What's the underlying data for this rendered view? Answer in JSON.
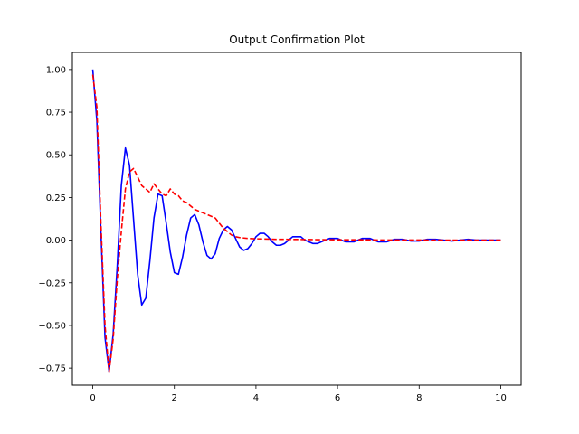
{
  "chart_data": {
    "type": "line",
    "title": "Output Confirmation Plot",
    "xlabel": "",
    "ylabel": "",
    "xlim": [
      -0.5,
      10.5
    ],
    "ylim": [
      -0.85,
      1.1
    ],
    "grid": false,
    "xticks": [
      0,
      2,
      4,
      6,
      8,
      10
    ],
    "xtick_labels": [
      "0",
      "2",
      "4",
      "6",
      "8",
      "10"
    ],
    "yticks": [
      -0.75,
      -0.5,
      -0.25,
      0.0,
      0.25,
      0.5,
      0.75,
      1.0
    ],
    "ytick_labels": [
      "−0.75",
      "−0.50",
      "−0.25",
      "0.00",
      "0.25",
      "0.50",
      "0.75",
      "1.00"
    ],
    "series": [
      {
        "color": "#0000ff",
        "style": "solid",
        "x": [
          0,
          0.1,
          0.2,
          0.3,
          0.4,
          0.5,
          0.6,
          0.7,
          0.8,
          0.9,
          1.0,
          1.1,
          1.2,
          1.3,
          1.4,
          1.5,
          1.6,
          1.7,
          1.8,
          1.9,
          2.0,
          2.1,
          2.2,
          2.3,
          2.4,
          2.5,
          2.6,
          2.7,
          2.8,
          2.9,
          3.0,
          3.1,
          3.2,
          3.3,
          3.4,
          3.5,
          3.6,
          3.7,
          3.8,
          3.9,
          4.0,
          4.1,
          4.2,
          4.3,
          4.4,
          4.5,
          4.6,
          4.7,
          4.8,
          4.9,
          5.0,
          5.1,
          5.2,
          5.3,
          5.4,
          5.5,
          5.6,
          5.7,
          5.8,
          5.9,
          6.0,
          6.2,
          6.4,
          6.6,
          6.8,
          7.0,
          7.2,
          7.4,
          7.6,
          7.8,
          8.0,
          8.2,
          8.4,
          8.6,
          8.8,
          9.0,
          9.2,
          9.4,
          9.6,
          9.8,
          10.0
        ],
        "y": [
          1.0,
          0.7,
          0.05,
          -0.57,
          -0.77,
          -0.55,
          -0.15,
          0.32,
          0.54,
          0.44,
          0.12,
          -0.2,
          -0.38,
          -0.34,
          -0.12,
          0.13,
          0.27,
          0.26,
          0.1,
          -0.07,
          -0.19,
          -0.2,
          -0.1,
          0.03,
          0.13,
          0.15,
          0.09,
          -0.01,
          -0.09,
          -0.11,
          -0.08,
          0.01,
          0.06,
          0.08,
          0.06,
          0.01,
          -0.04,
          -0.06,
          -0.05,
          -0.02,
          0.02,
          0.04,
          0.04,
          0.02,
          -0.01,
          -0.03,
          -0.03,
          -0.02,
          0.0,
          0.02,
          0.02,
          0.02,
          0.0,
          -0.01,
          -0.02,
          -0.02,
          -0.01,
          0.0,
          0.01,
          0.01,
          0.01,
          -0.01,
          -0.01,
          0.01,
          0.01,
          -0.01,
          -0.01,
          0.005,
          0.005,
          -0.005,
          -0.005,
          0.005,
          0.005,
          0.0,
          -0.005,
          0.0,
          0.005,
          0.0,
          0.0,
          0.0,
          0.0
        ]
      },
      {
        "color": "#ff0000",
        "style": "dashed",
        "x": [
          0,
          0.1,
          0.2,
          0.3,
          0.4,
          0.5,
          0.6,
          0.7,
          0.8,
          0.9,
          1.0,
          1.1,
          1.2,
          1.3,
          1.4,
          1.5,
          1.6,
          1.7,
          1.8,
          1.9,
          2.0,
          2.1,
          2.2,
          2.3,
          2.4,
          2.5,
          2.6,
          2.7,
          2.8,
          2.9,
          3.0,
          3.1,
          3.2,
          3.3,
          3.4,
          3.5,
          3.6,
          3.8,
          4.0,
          4.5,
          5.0,
          5.5,
          6.0,
          6.5,
          7.0,
          7.5,
          8.0,
          8.5,
          9.0,
          9.5,
          10.0
        ],
        "y": [
          0.97,
          0.78,
          0.1,
          -0.5,
          -0.77,
          -0.58,
          -0.23,
          0.05,
          0.3,
          0.4,
          0.42,
          0.37,
          0.32,
          0.3,
          0.28,
          0.33,
          0.3,
          0.27,
          0.26,
          0.3,
          0.27,
          0.26,
          0.23,
          0.22,
          0.2,
          0.18,
          0.17,
          0.16,
          0.15,
          0.14,
          0.13,
          0.1,
          0.07,
          0.05,
          0.03,
          0.02,
          0.015,
          0.01,
          0.008,
          0.005,
          0.004,
          0.003,
          0.002,
          0.002,
          0.001,
          0.001,
          0.001,
          0.0,
          0.0,
          0.0,
          0.0
        ]
      }
    ]
  }
}
